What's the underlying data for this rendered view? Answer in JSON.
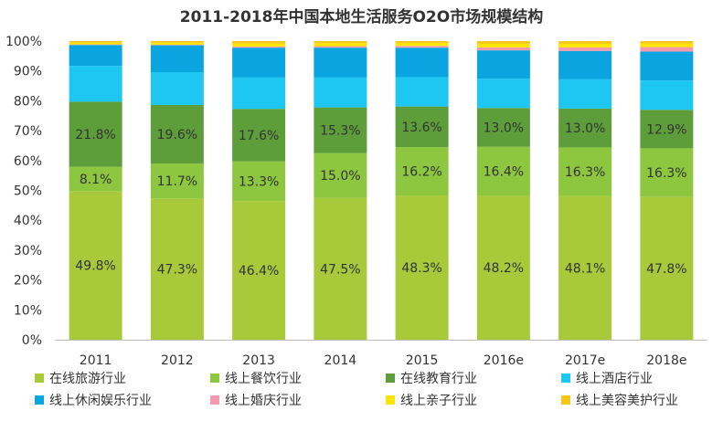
{
  "chart_data": {
    "type": "bar",
    "stacked": true,
    "title": "2011-2018年中国本地生活服务O2O市场规模结构",
    "xlabel": "",
    "ylabel": "",
    "ylim": [
      0,
      100
    ],
    "yticks": [
      "0%",
      "10%",
      "20%",
      "30%",
      "40%",
      "50%",
      "60%",
      "70%",
      "80%",
      "90%",
      "100%"
    ],
    "categories": [
      "2011",
      "2012",
      "2013",
      "2014",
      "2015",
      "2016e",
      "2017e",
      "2018e"
    ],
    "legend_position": "bottom",
    "series": [
      {
        "name": "在线旅游行业",
        "color": "#a7c93a",
        "values": [
          49.8,
          47.3,
          46.4,
          47.5,
          48.3,
          48.2,
          48.1,
          47.8
        ],
        "labels": [
          "49.8%",
          "47.3%",
          "46.4%",
          "47.5%",
          "48.3%",
          "48.2%",
          "48.1%",
          "47.8%"
        ]
      },
      {
        "name": "线上餐饮行业",
        "color": "#8dc63f",
        "values": [
          8.1,
          11.7,
          13.3,
          15.0,
          16.2,
          16.4,
          16.3,
          16.3
        ],
        "labels": [
          "8.1%",
          "11.7%",
          "13.3%",
          "15.0%",
          "16.2%",
          "16.4%",
          "16.3%",
          "16.3%"
        ]
      },
      {
        "name": "在线教育行业",
        "color": "#5d9e3a",
        "values": [
          21.8,
          19.6,
          17.6,
          15.3,
          13.6,
          13.0,
          13.0,
          12.9
        ],
        "labels": [
          "21.8%",
          "19.6%",
          "17.6%",
          "15.3%",
          "13.6%",
          "13.0%",
          "13.0%",
          "12.9%"
        ]
      },
      {
        "name": "线上酒店行业",
        "color": "#1ec6f2",
        "values": [
          12.0,
          11.0,
          10.5,
          10.0,
          9.8,
          9.8,
          9.8,
          9.8
        ]
      },
      {
        "name": "线上休闲娱乐行业",
        "color": "#0aa5e0",
        "values": [
          7.0,
          9.0,
          10.0,
          10.0,
          9.9,
          9.5,
          9.5,
          9.7
        ]
      },
      {
        "name": "线上婚庆行业",
        "color": "#f49aae",
        "values": [
          0.2,
          0.2,
          0.4,
          0.5,
          0.6,
          1.0,
          1.2,
          1.5
        ]
      },
      {
        "name": "线上亲子行业",
        "color": "#ffe600",
        "values": [
          0.6,
          0.7,
          1.0,
          1.0,
          1.0,
          1.2,
          1.2,
          1.2
        ]
      },
      {
        "name": "线上美容美护行业",
        "color": "#f5c71a",
        "values": [
          0.5,
          0.5,
          0.8,
          0.7,
          0.6,
          0.9,
          0.9,
          0.8
        ]
      }
    ]
  }
}
